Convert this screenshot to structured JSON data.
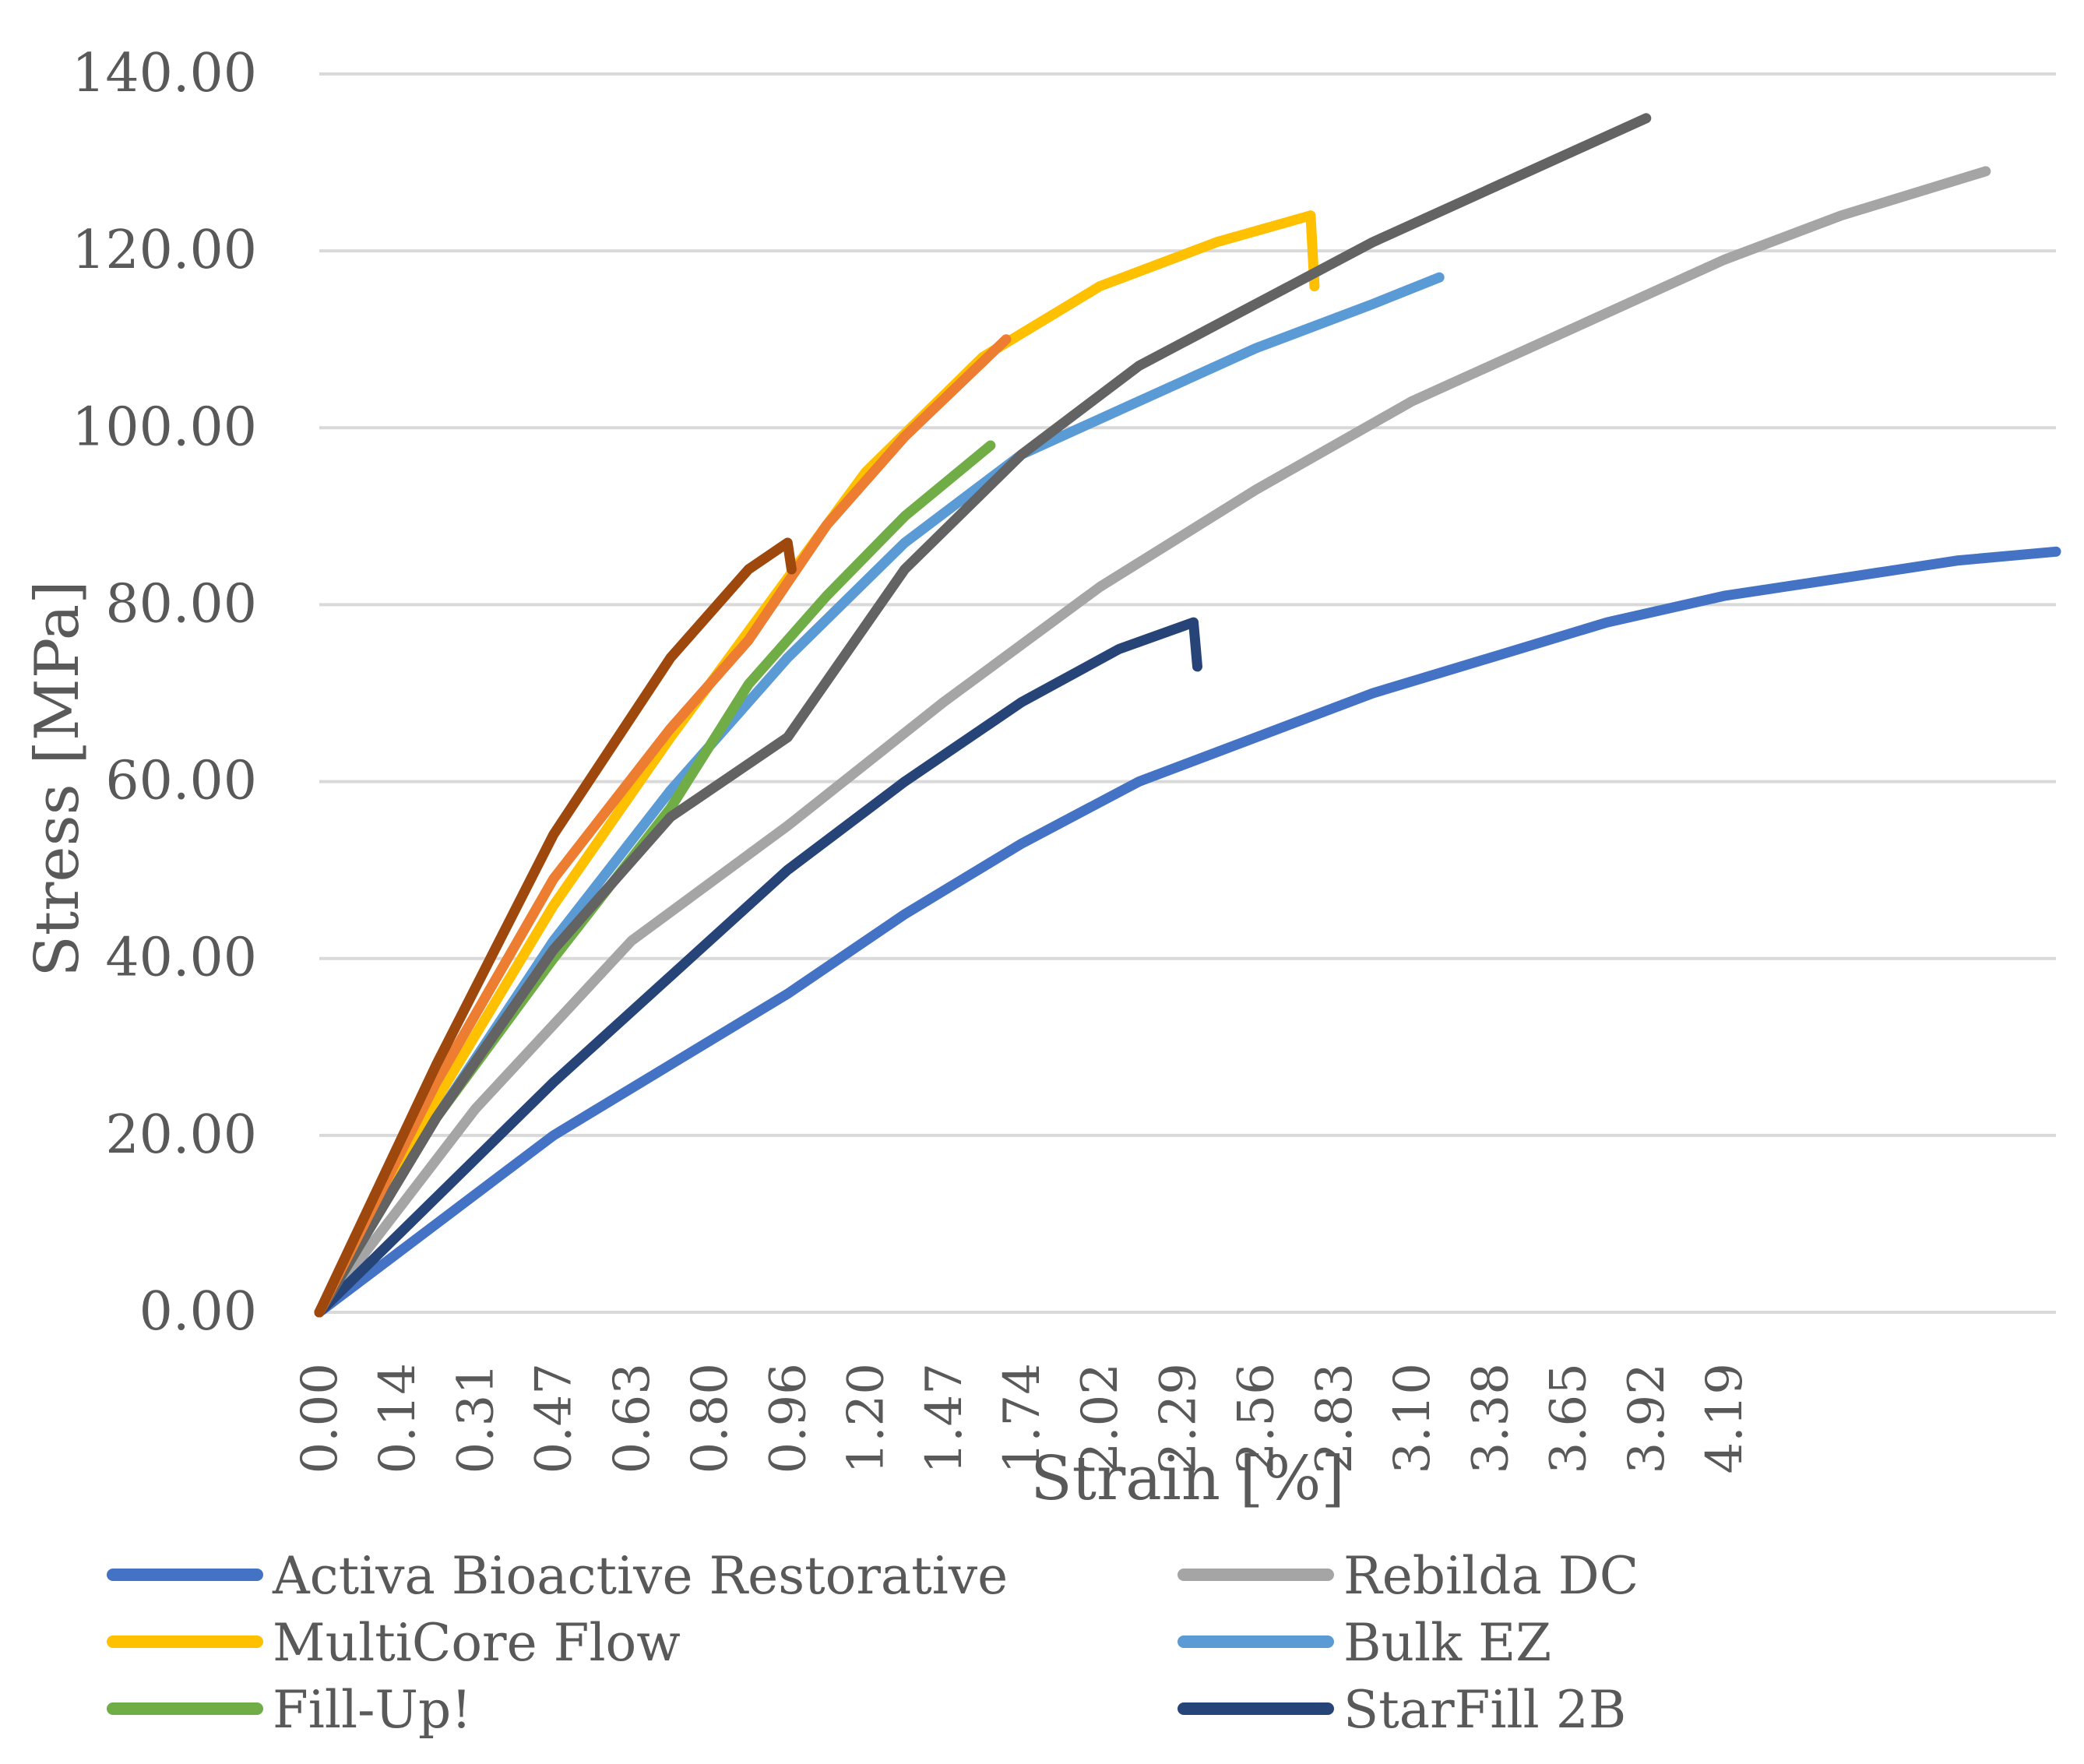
{
  "chart_data": {
    "type": "line",
    "title": "",
    "xlabel": "Strain [%]",
    "ylabel": "Stress [MPa]",
    "xlim": [
      0,
      4.45
    ],
    "ylim": [
      0,
      140
    ],
    "y_ticks": [
      "0.00",
      "20.00",
      "40.00",
      "60.00",
      "80.00",
      "100.00",
      "120.00",
      "140.00"
    ],
    "x_ticks": [
      "0.00",
      "0.14",
      "0.31",
      "0.47",
      "0.63",
      "0.80",
      "0.96",
      "1.20",
      "1.47",
      "1.74",
      "2.02",
      "2.29",
      "2.56",
      "2.83",
      "3.10",
      "3.38",
      "3.65",
      "3.92",
      "4.19"
    ],
    "x_tick_positions": [
      0.0,
      0.2,
      0.4,
      0.6,
      0.8,
      1.0,
      1.2,
      1.4,
      1.6,
      1.8,
      2.0,
      2.2,
      2.4,
      2.6,
      2.8,
      3.0,
      3.2,
      3.4,
      3.6
    ],
    "grid": "horizontal",
    "legend_position": "bottom",
    "series": [
      {
        "name": "Activa Bioactive Restorative",
        "color": "#4472C4",
        "x": [
          0,
          0.3,
          0.6,
          0.9,
          1.2,
          1.5,
          1.8,
          2.1,
          2.4,
          2.7,
          3.0,
          3.3,
          3.6,
          3.9,
          4.2,
          4.45
        ],
        "y": [
          0,
          10,
          20,
          28,
          36,
          45,
          53,
          60,
          65,
          70,
          74,
          78,
          81,
          83,
          85,
          86
        ]
      },
      {
        "name": "Rebilda DC",
        "color": "#A5A5A5",
        "x": [
          0,
          0.4,
          0.8,
          1.2,
          1.6,
          2.0,
          2.4,
          2.8,
          3.2,
          3.6,
          3.9,
          4.27
        ],
        "y": [
          0,
          23,
          42,
          55,
          69,
          82,
          93,
          103,
          111,
          119,
          124,
          129
        ]
      },
      {
        "name": "MultiCore Flow",
        "color": "#FFC000",
        "x": [
          0,
          0.3,
          0.6,
          0.9,
          1.1,
          1.4,
          1.7,
          2.0,
          2.3,
          2.54,
          2.55
        ],
        "y": [
          0,
          24,
          46,
          65,
          77,
          95,
          108,
          116,
          121,
          124,
          116
        ]
      },
      {
        "name": "Bulk EZ",
        "color": "#5B9BD5",
        "x": [
          0,
          0.3,
          0.6,
          0.9,
          1.2,
          1.5,
          1.8,
          2.1,
          2.4,
          2.7,
          2.87
        ],
        "y": [
          0,
          22,
          42,
          59,
          74,
          87,
          97,
          103,
          109,
          114,
          117
        ]
      },
      {
        "name": "Fill-Up!",
        "color": "#70AD47",
        "x": [
          0,
          0.3,
          0.6,
          0.9,
          1.1,
          1.3,
          1.5,
          1.72
        ],
        "y": [
          0,
          22,
          40,
          57,
          71,
          81,
          90,
          98
        ]
      },
      {
        "name": "StarFill 2B",
        "color": "#264478",
        "x": [
          0,
          0.3,
          0.6,
          0.9,
          1.2,
          1.5,
          1.8,
          2.05,
          2.24,
          2.25
        ],
        "y": [
          0,
          13,
          26,
          38,
          50,
          60,
          69,
          75,
          78,
          73
        ]
      },
      {
        "name": "",
        "color": "#636363",
        "x": [
          0,
          0.3,
          0.6,
          0.9,
          1.2,
          1.5,
          1.8,
          2.1,
          2.4,
          2.7,
          3.0,
          3.4
        ],
        "y": [
          0,
          22,
          41,
          56,
          65,
          84,
          97,
          107,
          114,
          121,
          127,
          135
        ]
      },
      {
        "name": "",
        "color": "#ED7D31",
        "x": [
          0,
          0.3,
          0.6,
          0.9,
          1.1,
          1.3,
          1.5,
          1.76
        ],
        "y": [
          0,
          26,
          49,
          66,
          76,
          89,
          99,
          110
        ]
      },
      {
        "name": "",
        "color": "#9E480E",
        "x": [
          0,
          0.3,
          0.6,
          0.9,
          1.1,
          1.2,
          1.21
        ],
        "y": [
          0,
          28,
          54,
          74,
          84,
          87,
          84
        ]
      }
    ]
  }
}
